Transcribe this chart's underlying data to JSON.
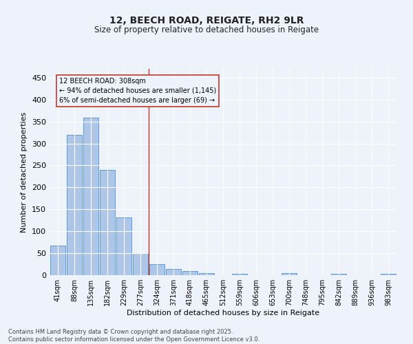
{
  "title1": "12, BEECH ROAD, REIGATE, RH2 9LR",
  "title2": "Size of property relative to detached houses in Reigate",
  "xlabel": "Distribution of detached houses by size in Reigate",
  "ylabel": "Number of detached properties",
  "bar_labels": [
    "41sqm",
    "88sqm",
    "135sqm",
    "182sqm",
    "229sqm",
    "277sqm",
    "324sqm",
    "371sqm",
    "418sqm",
    "465sqm",
    "512sqm",
    "559sqm",
    "606sqm",
    "653sqm",
    "700sqm",
    "748sqm",
    "795sqm",
    "842sqm",
    "889sqm",
    "936sqm",
    "983sqm"
  ],
  "bar_values": [
    67,
    320,
    358,
    240,
    131,
    50,
    25,
    14,
    10,
    4,
    0,
    3,
    0,
    0,
    4,
    0,
    0,
    3,
    0,
    0,
    3
  ],
  "bar_color": "#aec6e8",
  "bar_edge_color": "#5b9bd5",
  "marker_label": "12 BEECH ROAD: 308sqm",
  "annotation_line1": "← 94% of detached houses are smaller (1,145)",
  "annotation_line2": "6% of semi-detached houses are larger (69) →",
  "vline_color": "#c0392b",
  "annotation_box_edge": "#c0392b",
  "ylim": [
    0,
    470
  ],
  "yticks": [
    0,
    50,
    100,
    150,
    200,
    250,
    300,
    350,
    400,
    450
  ],
  "bg_color": "#eef2fb",
  "grid_color": "#ffffff",
  "footer1": "Contains HM Land Registry data © Crown copyright and database right 2025.",
  "footer2": "Contains public sector information licensed under the Open Government Licence v3.0."
}
